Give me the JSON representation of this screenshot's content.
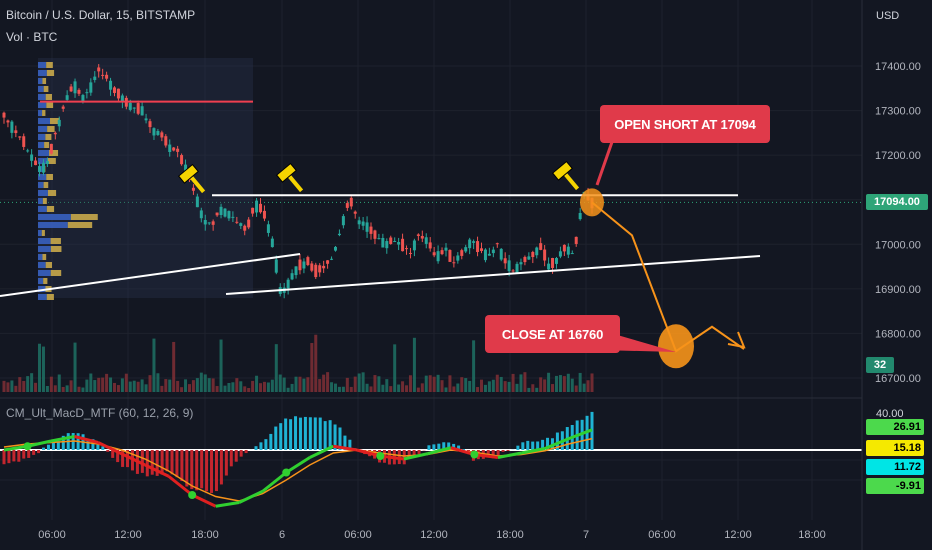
{
  "header": {
    "title": "Bitcoin / U.S. Dollar, 15, BITSTAMP",
    "volume_label": "Vol · BTC",
    "indicator": "CM_Ult_MacD_MTF (60, 12, 26, 9)"
  },
  "price_axis": {
    "currency": "USD",
    "current_price": "17094.00",
    "volume_value": "32"
  },
  "annotations": {
    "open_short": "OPEN SHORT AT 17094",
    "close": "CLOSE AT 16760"
  },
  "macd_values": {
    "top": "40.00",
    "v1": "26.91",
    "v2": "15.18",
    "v3": "11.72",
    "v4": "-9.91"
  },
  "chart_data": {
    "type": "line",
    "title": "Bitcoin / U.S. Dollar, 15, BITSTAMP",
    "y_ticks": [
      17400,
      17300,
      17200,
      17100,
      17000,
      16900,
      16800,
      16700
    ],
    "y_tick_labels": [
      "17400.00",
      "17300.00",
      "17200.00",
      "17100.00",
      "17000.00",
      "16900.00",
      "16800.00",
      "16700.00"
    ],
    "x_tick_labels": [
      "06:00",
      "12:00",
      "18:00",
      "6",
      "06:00",
      "12:00",
      "18:00",
      "7",
      "06:00",
      "12:00",
      "18:00"
    ],
    "ylim": [
      16660,
      17500
    ],
    "price_path": [
      17290,
      17260,
      17240,
      17200,
      17170,
      17180,
      17250,
      17320,
      17360,
      17330,
      17350,
      17390,
      17370,
      17340,
      17320,
      17310,
      17300,
      17260,
      17250,
      17220,
      17210,
      17170,
      17120,
      17060,
      17040,
      17080,
      17070,
      17050,
      17030,
      17090,
      17070,
      17010,
      16890,
      16920,
      16950,
      16960,
      16940,
      16950,
      16970,
      17040,
      17100,
      17050,
      17040,
      17020,
      17000,
      17010,
      17000,
      16980,
      17020,
      17010,
      16970,
      16990,
      16960,
      16980,
      17010,
      16990,
      16970,
      17000,
      16960,
      16940,
      16960,
      16970,
      17000,
      16950,
      16970,
      16990,
      16980,
      17120,
      17090
    ],
    "key_levels": {
      "red_resistance": 17320,
      "white_resistance": 17110,
      "current": 17094,
      "close_target": 16760
    },
    "projection": [
      17094,
      17020,
      16760,
      16815,
      16765
    ],
    "series": [
      {
        "values": [
          0,
          5,
          12,
          18,
          10,
          -5,
          -20,
          -35,
          -60,
          -75,
          -70,
          -55,
          -30,
          -10,
          5,
          0,
          -8,
          -12,
          -5,
          3,
          -6,
          -10,
          -4,
          2,
          15,
          26.91
        ]
      },
      {
        "values": [
          4,
          8,
          10,
          12,
          8,
          0,
          -12,
          -28,
          -48,
          -62,
          -68,
          -58,
          -40,
          -20,
          -4,
          0,
          -4,
          -8,
          -6,
          0,
          -3,
          -8,
          -6,
          -1,
          8,
          15.18
        ]
      }
    ]
  }
}
